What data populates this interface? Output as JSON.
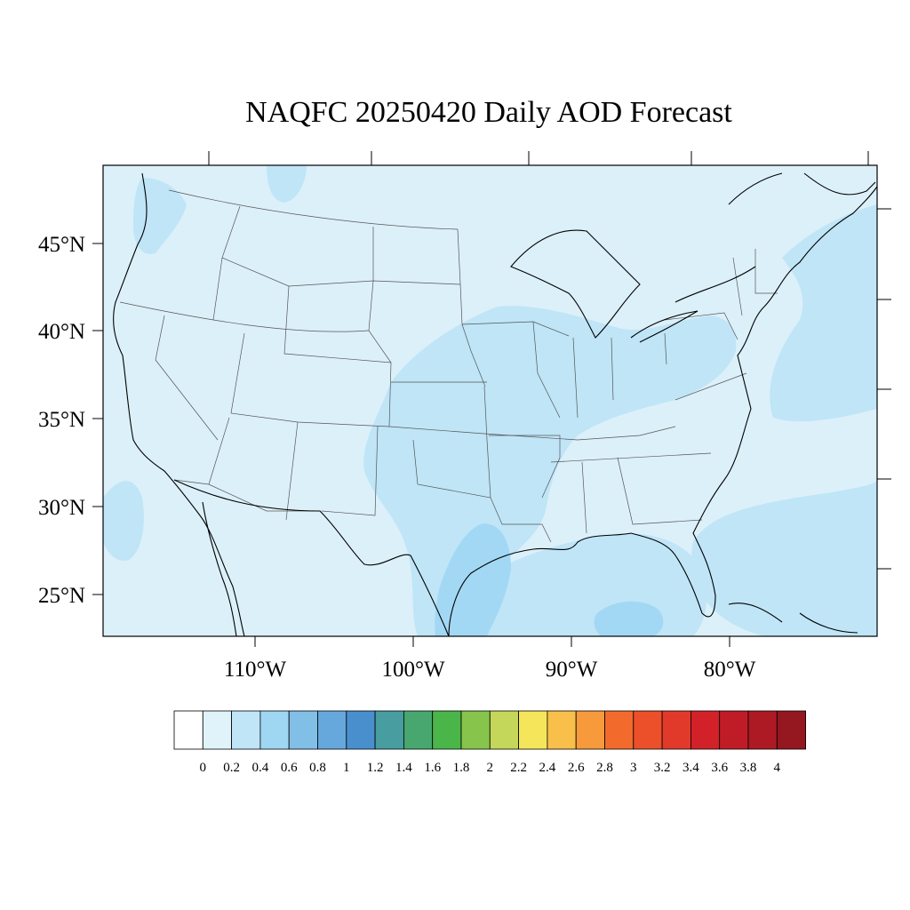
{
  "title": "NAQFC 20250420 Daily AOD Forecast",
  "map": {
    "lat_labels": [
      "45°N",
      "40°N",
      "35°N",
      "30°N",
      "25°N"
    ],
    "lon_labels": [
      "110°W",
      "100°W",
      "90°W",
      "80°W"
    ],
    "colors": {
      "background_field": "#dcf0fa",
      "aod_0_2_to_0_4": "#bfe5f7",
      "aod_0_4_to_0_6": "#a2d8f4"
    }
  },
  "colorbar": {
    "labels": [
      "0",
      "0.2",
      "0.4",
      "0.6",
      "0.8",
      "1",
      "1.2",
      "1.4",
      "1.6",
      "1.8",
      "2",
      "2.2",
      "2.4",
      "2.6",
      "2.8",
      "3",
      "3.2",
      "3.4",
      "3.6",
      "3.8",
      "4"
    ],
    "colors": [
      "#ffffff",
      "#e0f3fb",
      "#bfe5f7",
      "#9fd6f2",
      "#82bfe7",
      "#66a8dc",
      "#4a8fcd",
      "#479d9f",
      "#47a76e",
      "#4ab549",
      "#86c44b",
      "#c4d75a",
      "#f5e55b",
      "#f8c04a",
      "#f69a3c",
      "#f26b2c",
      "#eb502a",
      "#e23a2a",
      "#d32129",
      "#c01c27",
      "#ad1a24",
      "#951720"
    ]
  }
}
